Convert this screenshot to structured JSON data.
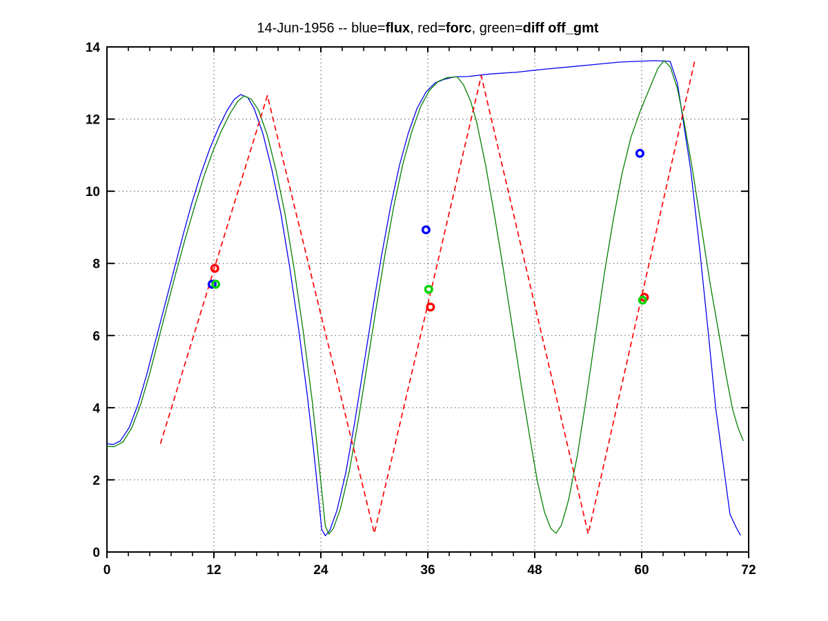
{
  "title": {
    "segments": [
      {
        "text": "14-Jun-1956 -- blue=",
        "bold": false
      },
      {
        "text": "flux",
        "bold": true
      },
      {
        "text": ", red=",
        "bold": false
      },
      {
        "text": "forc",
        "bold": true
      },
      {
        "text": ", green=",
        "bold": false
      },
      {
        "text": "diff off_gmt",
        "bold": true
      }
    ]
  },
  "axes": {
    "xlim": [
      0,
      72
    ],
    "ylim": [
      0,
      14
    ],
    "xticks": [
      0,
      12,
      24,
      36,
      48,
      60,
      72
    ],
    "xtick_labels": [
      "0",
      "12",
      "24",
      "36",
      "48",
      "60",
      "72"
    ],
    "yticks": [
      0,
      2,
      4,
      6,
      8,
      10,
      12,
      14
    ],
    "ytick_labels": [
      "0",
      "2",
      "4",
      "6",
      "8",
      "10",
      "12",
      "14"
    ],
    "x_minor_step": 2.4,
    "grid_style": "dotted",
    "grid_color": "#000000",
    "box_color": "#000000"
  },
  "chart_data": {
    "type": "line",
    "title": "14-Jun-1956 -- blue=flux, red=forc, green=diff off_gmt",
    "xlabel": "",
    "ylabel": "",
    "xlim": [
      0,
      72
    ],
    "ylim": [
      0,
      14
    ],
    "series": [
      {
        "name": "flux",
        "color": "#0000ee",
        "style": "solid",
        "width": 1.3,
        "points": [
          [
            0,
            3.0
          ],
          [
            0.7,
            2.98
          ],
          [
            1.5,
            3.08
          ],
          [
            2.5,
            3.45
          ],
          [
            3.5,
            4.1
          ],
          [
            4.5,
            4.95
          ],
          [
            5.5,
            5.9
          ],
          [
            6.5,
            6.85
          ],
          [
            7.5,
            7.8
          ],
          [
            8.5,
            8.75
          ],
          [
            9.5,
            9.65
          ],
          [
            10.5,
            10.45
          ],
          [
            11.5,
            11.15
          ],
          [
            12.5,
            11.75
          ],
          [
            13.5,
            12.25
          ],
          [
            14.3,
            12.55
          ],
          [
            15.0,
            12.68
          ],
          [
            15.8,
            12.6
          ],
          [
            16.5,
            12.3
          ],
          [
            17.5,
            11.6
          ],
          [
            18.5,
            10.6
          ],
          [
            19.5,
            9.4
          ],
          [
            20.5,
            7.9
          ],
          [
            21.5,
            6.2
          ],
          [
            22.5,
            4.3
          ],
          [
            23.2,
            2.8
          ],
          [
            23.7,
            1.6
          ],
          [
            24.1,
            0.62
          ],
          [
            24.5,
            0.45
          ],
          [
            25.0,
            0.6
          ],
          [
            25.8,
            1.15
          ],
          [
            26.8,
            2.2
          ],
          [
            27.8,
            3.6
          ],
          [
            28.8,
            5.15
          ],
          [
            29.8,
            6.7
          ],
          [
            30.8,
            8.2
          ],
          [
            31.8,
            9.55
          ],
          [
            32.8,
            10.7
          ],
          [
            33.8,
            11.6
          ],
          [
            34.8,
            12.3
          ],
          [
            35.8,
            12.75
          ],
          [
            36.8,
            13.0
          ],
          [
            37.8,
            13.1
          ],
          [
            39.0,
            13.17
          ],
          [
            40.5,
            13.18
          ],
          [
            43,
            13.25
          ],
          [
            46,
            13.3
          ],
          [
            49,
            13.38
          ],
          [
            52,
            13.45
          ],
          [
            55,
            13.52
          ],
          [
            57.5,
            13.58
          ],
          [
            59.5,
            13.6
          ],
          [
            61.5,
            13.62
          ],
          [
            63.2,
            13.6
          ],
          [
            64.0,
            13.0
          ],
          [
            64.6,
            12.05
          ],
          [
            65.5,
            10.6
          ],
          [
            66.5,
            8.4
          ],
          [
            67.5,
            6.0
          ],
          [
            68.3,
            4.0
          ],
          [
            69.2,
            2.35
          ],
          [
            69.9,
            1.05
          ],
          [
            70.6,
            0.68
          ],
          [
            71.1,
            0.46
          ]
        ]
      },
      {
        "name": "diff",
        "color": "#007f00",
        "style": "solid",
        "width": 1.3,
        "points": [
          [
            0,
            2.93
          ],
          [
            0.8,
            2.92
          ],
          [
            1.8,
            3.05
          ],
          [
            2.8,
            3.45
          ],
          [
            3.8,
            4.1
          ],
          [
            4.8,
            4.95
          ],
          [
            5.8,
            5.9
          ],
          [
            6.8,
            6.85
          ],
          [
            7.8,
            7.8
          ],
          [
            8.8,
            8.7
          ],
          [
            9.8,
            9.55
          ],
          [
            10.8,
            10.35
          ],
          [
            11.8,
            11.05
          ],
          [
            12.8,
            11.65
          ],
          [
            13.8,
            12.15
          ],
          [
            14.7,
            12.5
          ],
          [
            15.4,
            12.64
          ],
          [
            16.2,
            12.55
          ],
          [
            17.0,
            12.25
          ],
          [
            18.0,
            11.55
          ],
          [
            19.0,
            10.55
          ],
          [
            20.0,
            9.35
          ],
          [
            21.0,
            7.85
          ],
          [
            22.0,
            6.15
          ],
          [
            23.0,
            4.25
          ],
          [
            23.6,
            2.9
          ],
          [
            24.1,
            1.7
          ],
          [
            24.5,
            0.72
          ],
          [
            24.9,
            0.5
          ],
          [
            25.4,
            0.65
          ],
          [
            26.2,
            1.2
          ],
          [
            27.2,
            2.25
          ],
          [
            28.2,
            3.65
          ],
          [
            29.2,
            5.2
          ],
          [
            30.2,
            6.75
          ],
          [
            31.2,
            8.25
          ],
          [
            32.2,
            9.6
          ],
          [
            33.2,
            10.75
          ],
          [
            34.2,
            11.65
          ],
          [
            35.2,
            12.35
          ],
          [
            36.2,
            12.8
          ],
          [
            37.2,
            13.05
          ],
          [
            38.2,
            13.15
          ],
          [
            39.3,
            13.17
          ],
          [
            40.0,
            12.95
          ],
          [
            40.8,
            12.5
          ],
          [
            41.5,
            11.9
          ],
          [
            42.5,
            10.7
          ],
          [
            43.5,
            9.3
          ],
          [
            44.5,
            7.8
          ],
          [
            45.5,
            6.2
          ],
          [
            46.5,
            4.6
          ],
          [
            47.5,
            3.1
          ],
          [
            48.3,
            1.95
          ],
          [
            49.1,
            1.1
          ],
          [
            49.8,
            0.65
          ],
          [
            50.4,
            0.52
          ],
          [
            51.0,
            0.75
          ],
          [
            51.8,
            1.45
          ],
          [
            52.8,
            2.7
          ],
          [
            53.8,
            4.3
          ],
          [
            54.8,
            6.0
          ],
          [
            55.8,
            7.7
          ],
          [
            56.8,
            9.2
          ],
          [
            57.8,
            10.5
          ],
          [
            58.8,
            11.5
          ],
          [
            59.8,
            12.2
          ],
          [
            60.8,
            12.8
          ],
          [
            61.8,
            13.4
          ],
          [
            62.5,
            13.62
          ],
          [
            63.2,
            13.45
          ],
          [
            64.0,
            12.85
          ],
          [
            64.7,
            12.0
          ],
          [
            65.7,
            10.6
          ],
          [
            66.7,
            9.0
          ],
          [
            67.7,
            7.4
          ],
          [
            68.7,
            6.0
          ],
          [
            69.5,
            4.85
          ],
          [
            70.2,
            3.95
          ],
          [
            70.8,
            3.45
          ],
          [
            71.4,
            3.08
          ]
        ]
      },
      {
        "name": "forc",
        "color": "#ff0000",
        "style": "dashed",
        "width": 1.7,
        "points": [
          [
            6,
            3.0
          ],
          [
            18,
            12.65
          ],
          [
            30,
            0.52
          ],
          [
            42,
            13.2
          ],
          [
            54,
            0.5
          ],
          [
            66,
            13.67
          ]
        ]
      }
    ],
    "markers": [
      {
        "name": "flux-obs",
        "color": "#0000ff",
        "points": [
          [
            11.8,
            7.42
          ],
          [
            35.8,
            8.93
          ],
          [
            59.8,
            11.05
          ]
        ]
      },
      {
        "name": "forc-obs",
        "color": "#ff0000",
        "points": [
          [
            12.1,
            7.86
          ],
          [
            36.3,
            6.79
          ],
          [
            60.3,
            7.06
          ]
        ]
      },
      {
        "name": "diff-obs",
        "color": "#00d400",
        "points": [
          [
            12.2,
            7.42
          ],
          [
            36.1,
            7.28
          ],
          [
            60.1,
            6.98
          ]
        ]
      }
    ]
  }
}
